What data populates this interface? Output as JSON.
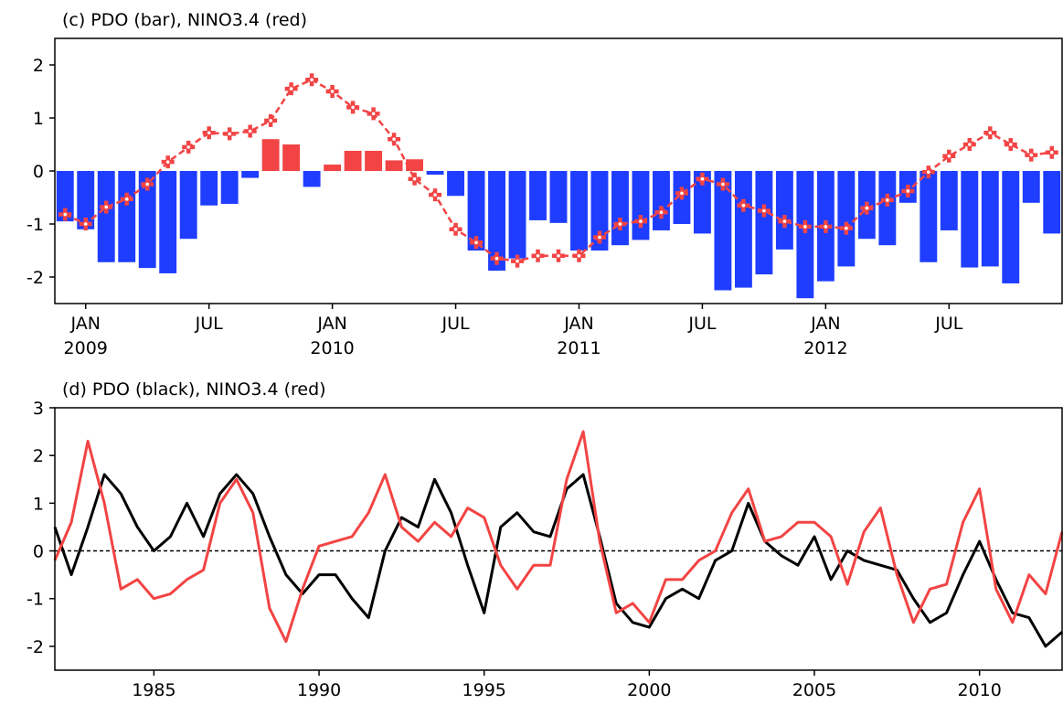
{
  "chart_data": [
    {
      "type": "bar",
      "title": "(c) PDO (bar), NINO3.4 (red)",
      "categories": [
        null,
        "JAN",
        null,
        null,
        null,
        null,
        null,
        "JUL",
        null,
        null,
        null,
        null,
        null,
        "JAN",
        null,
        null,
        null,
        null,
        null,
        "JUL",
        null,
        null,
        null,
        null,
        null,
        "JAN",
        null,
        null,
        null,
        null,
        null,
        "JUL",
        null,
        null,
        null,
        null,
        null,
        "JAN",
        null,
        null,
        null,
        null,
        null,
        "JUL",
        null,
        null,
        null,
        null,
        null
      ],
      "x_year_labels": [
        null,
        "2009",
        null,
        null,
        null,
        null,
        null,
        null,
        null,
        null,
        null,
        null,
        null,
        "2010",
        null,
        null,
        null,
        null,
        null,
        null,
        null,
        null,
        null,
        null,
        null,
        "2011",
        null,
        null,
        null,
        null,
        null,
        null,
        null,
        null,
        null,
        null,
        null,
        "2012",
        null,
        null,
        null,
        null,
        null,
        null,
        null,
        null,
        null,
        null,
        null
      ],
      "series": [
        {
          "type": "bar",
          "color_positive": "#f24444",
          "color_negative": "#1f3dff",
          "values": [
            -0.95,
            -1.1,
            -1.72,
            -1.72,
            -1.83,
            -1.93,
            -1.28,
            -0.65,
            -0.62,
            -0.13,
            0.6,
            0.5,
            -0.3,
            0.12,
            0.38,
            0.38,
            0.2,
            0.22,
            -0.07,
            -0.47,
            -1.5,
            -1.88,
            -1.65,
            -0.93,
            -0.98,
            -1.5,
            -1.5,
            -1.4,
            -1.3,
            -1.12,
            -1.0,
            -1.18,
            -2.25,
            -2.2,
            -1.95,
            -1.48,
            -2.4,
            -2.08,
            -1.8,
            -1.28,
            -1.4,
            -0.6,
            -1.72,
            -1.12,
            -1.82,
            -1.8,
            -2.12,
            -0.6,
            -1.18
          ]
        },
        {
          "type": "line",
          "color": "#f24444",
          "marker": "+",
          "values": [
            -0.82,
            -1.0,
            -0.68,
            -0.53,
            -0.25,
            0.17,
            0.45,
            0.72,
            0.7,
            0.75,
            0.95,
            1.55,
            1.72,
            1.5,
            1.2,
            1.08,
            0.6,
            -0.15,
            -0.45,
            -1.1,
            -1.35,
            -1.65,
            -1.7,
            -1.6,
            -1.6,
            -1.6,
            -1.25,
            -1.0,
            -0.95,
            -0.78,
            -0.42,
            -0.15,
            -0.25,
            -0.65,
            -0.75,
            -0.95,
            -1.05,
            -1.05,
            -1.08,
            -0.7,
            -0.55,
            -0.38,
            -0.02,
            0.28,
            0.5,
            0.72,
            0.5,
            0.3,
            0.35
          ]
        }
      ],
      "ylim": [
        -2.5,
        2.5
      ],
      "yticks": [
        -2,
        -1,
        0,
        1,
        2
      ]
    },
    {
      "type": "line",
      "title": "(d) PDO (black), NINO3.4 (red)",
      "x": [
        1982.0,
        1982.5,
        1983.0,
        1983.5,
        1984.0,
        1984.5,
        1985.0,
        1985.5,
        1986.0,
        1986.5,
        1987.0,
        1987.5,
        1988.0,
        1988.5,
        1989.0,
        1989.5,
        1990.0,
        1990.5,
        1991.0,
        1991.5,
        1992.0,
        1992.5,
        1993.0,
        1993.5,
        1994.0,
        1994.5,
        1995.0,
        1995.5,
        1996.0,
        1996.5,
        1997.0,
        1997.5,
        1998.0,
        1998.5,
        1999.0,
        1999.5,
        2000.0,
        2000.5,
        2001.0,
        2001.5,
        2002.0,
        2002.5,
        2003.0,
        2003.5,
        2004.0,
        2004.5,
        2005.0,
        2005.5,
        2006.0,
        2006.5,
        2007.0,
        2007.5,
        2008.0,
        2008.5,
        2009.0,
        2009.5,
        2010.0,
        2010.5,
        2011.0,
        2011.5,
        2012.0,
        2012.5
      ],
      "series": [
        {
          "color": "#000000",
          "values": [
            0.5,
            -0.5,
            0.5,
            1.6,
            1.2,
            0.5,
            0.0,
            0.3,
            1.0,
            0.3,
            1.2,
            1.6,
            1.2,
            0.3,
            -0.5,
            -0.9,
            -0.5,
            -0.5,
            -1.0,
            -1.4,
            0.0,
            0.7,
            0.5,
            1.5,
            0.8,
            -0.3,
            -1.3,
            0.5,
            0.8,
            0.4,
            0.3,
            1.3,
            1.6,
            0.3,
            -1.1,
            -1.5,
            -1.6,
            -1.0,
            -0.8,
            -1.0,
            -0.2,
            0.0,
            1.0,
            0.2,
            -0.1,
            -0.3,
            0.3,
            -0.6,
            0.0,
            -0.2,
            -0.3,
            -0.4,
            -1.0,
            -1.5,
            -1.3,
            -0.5,
            0.2,
            -0.6,
            -1.3,
            -1.4,
            -2.0,
            -1.7
          ]
        },
        {
          "color": "#f24444",
          "values": [
            -0.2,
            0.6,
            2.3,
            1.0,
            -0.8,
            -0.6,
            -1.0,
            -0.9,
            -0.6,
            -0.4,
            1.0,
            1.5,
            0.8,
            -1.2,
            -1.9,
            -0.8,
            0.1,
            0.2,
            0.3,
            0.8,
            1.6,
            0.5,
            0.2,
            0.6,
            0.3,
            0.9,
            0.7,
            -0.3,
            -0.8,
            -0.3,
            -0.3,
            1.5,
            2.5,
            0.2,
            -1.3,
            -1.1,
            -1.5,
            -0.6,
            -0.6,
            -0.2,
            0.0,
            0.8,
            1.3,
            0.2,
            0.3,
            0.6,
            0.6,
            0.3,
            -0.7,
            0.4,
            0.9,
            -0.5,
            -1.5,
            -0.8,
            -0.7,
            0.6,
            1.3,
            -0.8,
            -1.5,
            -0.5,
            -0.9,
            0.4
          ]
        }
      ],
      "xlim": [
        1982,
        2012.5
      ],
      "xticks": [
        1985,
        1990,
        1995,
        2000,
        2005,
        2010
      ],
      "ylim": [
        -2.5,
        3
      ],
      "yticks": [
        -2,
        -1,
        0,
        1,
        2,
        3
      ],
      "zero_line": true
    }
  ]
}
